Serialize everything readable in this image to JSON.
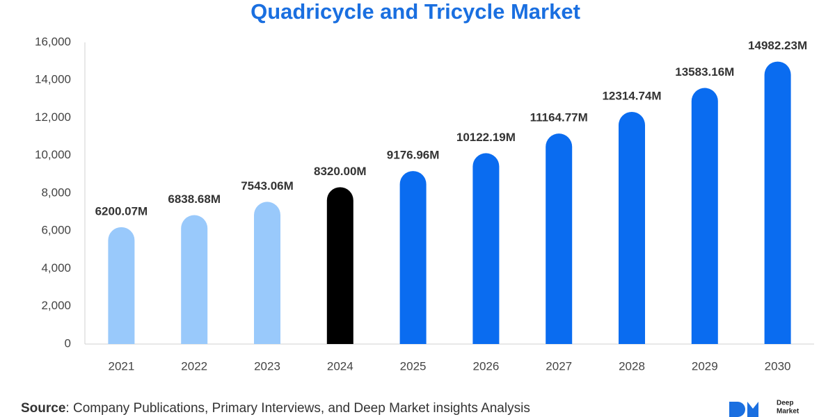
{
  "chart_data": {
    "type": "bar",
    "title": "Quadricycle and Tricycle Market",
    "categories": [
      "2021",
      "2022",
      "2023",
      "2024",
      "2025",
      "2026",
      "2027",
      "2028",
      "2029",
      "2030"
    ],
    "values": [
      6200.07,
      6838.68,
      7543.06,
      8320.0,
      9176.96,
      10122.19,
      11164.77,
      12314.74,
      13583.16,
      14982.23
    ],
    "value_labels": [
      "6200.07M",
      "6838.68M",
      "7543.06M",
      "8320.00M",
      "9176.96M",
      "10122.19M",
      "11164.77M",
      "12314.74M",
      "13583.16M",
      "14982.23M"
    ],
    "colors": [
      "#99c9fb",
      "#99c9fb",
      "#99c9fb",
      "#000000",
      "#0a6cf0",
      "#0a6cf0",
      "#0a6cf0",
      "#0a6cf0",
      "#0a6cf0",
      "#0a6cf0"
    ],
    "ylim": [
      0,
      16000
    ],
    "yticks": [
      0,
      {
        "value": 2000,
        "label": "2,000"
      },
      {
        "value": 4000,
        "label": "4,000"
      },
      {
        "value": 6000,
        "label": "6,000"
      },
      {
        "value": 8000,
        "label": "8,000"
      },
      {
        "value": 10000,
        "label": "10,000"
      },
      {
        "value": 12000,
        "label": "12,000"
      },
      {
        "value": 14000,
        "label": "14,000"
      },
      {
        "value": 16000,
        "label": "16,000"
      }
    ],
    "grid": false
  },
  "source": {
    "label": "Source",
    "text": ": Company Publications, Primary Interviews, and Deep Market insights Analysis"
  },
  "logo": {
    "line1": "Deep",
    "line2": "Market"
  }
}
